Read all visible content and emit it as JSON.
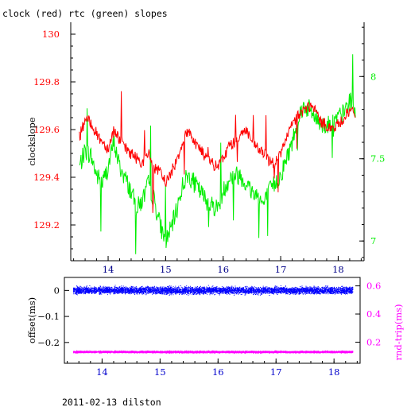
{
  "title": "clock (red) rtc (green) slopes",
  "footer": "2011-02-13 dilston",
  "colors": {
    "clock": "#ff0000",
    "rtc": "#00ee00",
    "offset": "#0000ff",
    "rndtrip": "#ff00ff",
    "top_x_ticks": "#000088",
    "bottom_x_ticks": "#0000cc",
    "axes": "#000000"
  },
  "chart_data": [
    {
      "type": "line",
      "panel": "top",
      "title": "clock (red) rtc (green) slopes",
      "xlabel": "",
      "ylabel": "clockslope",
      "y2label": "",
      "xlim": [
        13.35,
        18.45
      ],
      "ylim": [
        129.05,
        130.05
      ],
      "y2lim": [
        6.88,
        8.33
      ],
      "x_ticks": [
        14,
        15,
        16,
        17,
        18
      ],
      "y_ticks": [
        129.2,
        129.4,
        129.6,
        129.8,
        130
      ],
      "y_tick_labels": [
        "129.2",
        "129.4",
        "129.6",
        "129.8",
        "130"
      ],
      "y2_ticks": [
        7,
        7.5,
        8
      ],
      "y2_tick_labels": [
        "7",
        "7.5",
        "8"
      ],
      "legend": "none",
      "grid": false,
      "series": [
        {
          "name": "clock",
          "axis": "left",
          "x": [
            13.5,
            13.6,
            13.7,
            13.8,
            13.9,
            14.0,
            14.1,
            14.2,
            14.3,
            14.4,
            14.5,
            14.6,
            14.7,
            14.8,
            14.9,
            15.0,
            15.1,
            15.2,
            15.3,
            15.4,
            15.5,
            15.6,
            15.7,
            15.8,
            15.9,
            16.0,
            16.1,
            16.2,
            16.3,
            16.4,
            16.5,
            16.6,
            16.7,
            16.8,
            16.9,
            17.0,
            17.1,
            17.2,
            17.3,
            17.4,
            17.5,
            17.6,
            17.7,
            17.8,
            17.9,
            18.0,
            18.1,
            18.2,
            18.3
          ],
          "values": [
            129.57,
            129.64,
            129.63,
            129.58,
            129.55,
            129.52,
            129.6,
            129.56,
            129.52,
            129.5,
            129.48,
            129.46,
            129.5,
            129.44,
            129.42,
            129.38,
            129.42,
            129.48,
            129.55,
            129.6,
            129.55,
            129.52,
            129.48,
            129.46,
            129.44,
            129.48,
            129.53,
            129.55,
            129.58,
            129.6,
            129.55,
            129.52,
            129.5,
            129.47,
            129.46,
            129.5,
            129.56,
            129.62,
            129.66,
            129.68,
            129.7,
            129.68,
            129.63,
            129.62,
            129.6,
            129.62,
            129.65,
            129.68,
            129.66
          ]
        },
        {
          "name": "rtc",
          "axis": "right",
          "x": [
            13.5,
            13.6,
            13.7,
            13.8,
            13.9,
            14.0,
            14.1,
            14.2,
            14.3,
            14.4,
            14.5,
            14.6,
            14.7,
            14.8,
            14.9,
            15.0,
            15.1,
            15.2,
            15.3,
            15.4,
            15.5,
            15.6,
            15.7,
            15.8,
            15.9,
            16.0,
            16.1,
            16.2,
            16.3,
            16.4,
            16.5,
            16.6,
            16.7,
            16.8,
            16.9,
            17.0,
            17.1,
            17.2,
            17.3,
            17.4,
            17.5,
            17.6,
            17.7,
            17.8,
            17.9,
            18.0,
            18.1,
            18.2,
            18.3
          ],
          "values": [
            7.45,
            7.55,
            7.52,
            7.4,
            7.35,
            7.45,
            7.6,
            7.45,
            7.38,
            7.3,
            7.2,
            7.25,
            7.35,
            7.25,
            7.1,
            7.0,
            7.08,
            7.2,
            7.35,
            7.4,
            7.35,
            7.3,
            7.25,
            7.22,
            7.2,
            7.3,
            7.38,
            7.4,
            7.4,
            7.35,
            7.3,
            7.28,
            7.22,
            7.3,
            7.35,
            7.4,
            7.5,
            7.6,
            7.75,
            7.82,
            7.8,
            7.75,
            7.72,
            7.7,
            7.72,
            7.75,
            7.78,
            7.85,
            7.8
          ]
        }
      ]
    },
    {
      "type": "scatter",
      "panel": "bottom",
      "xlabel": "",
      "ylabel": "offset(ms)",
      "y2label": "rnd-trip(ms)",
      "xlim": [
        13.35,
        18.45
      ],
      "ylim": [
        -0.28,
        0.05
      ],
      "y2lim": [
        0.05,
        0.66
      ],
      "x_ticks": [
        14,
        15,
        16,
        17,
        18
      ],
      "y_ticks": [
        -0.2,
        -0.1,
        0
      ],
      "y_tick_labels": [
        "−0.2",
        "−0.1",
        "0"
      ],
      "y2_ticks": [
        0.2,
        0.4,
        0.6
      ],
      "y2_tick_labels": [
        "0.2",
        "0.4",
        "0.6"
      ],
      "legend": "none",
      "grid": false,
      "series": [
        {
          "name": "offset",
          "axis": "left",
          "x_range": [
            13.5,
            18.32
          ],
          "center": 0.0,
          "spread": 0.02
        },
        {
          "name": "rnd-trip",
          "axis": "right",
          "x_range": [
            13.5,
            18.32
          ],
          "center": 0.13,
          "spread": 0.01
        }
      ]
    }
  ]
}
